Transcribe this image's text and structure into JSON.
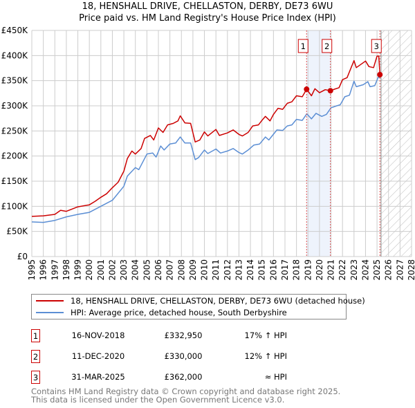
{
  "title_line1": "18, HENSHALL DRIVE, CHELLASTON, DERBY, DE73 6WU",
  "title_line2": "Price paid vs. HM Land Registry's House Price Index (HPI)",
  "legend": [
    {
      "label": "18, HENSHALL DRIVE, CHELLASTON, DERBY, DE73 6WU (detached house)",
      "color": "#cc0000"
    },
    {
      "label": "HPI: Average price, detached house, South Derbyshire",
      "color": "#5b8ed4"
    }
  ],
  "sales": [
    {
      "num": "1",
      "date": "16-NOV-2018",
      "price": "£332,950",
      "hpi": "17% ↑ HPI"
    },
    {
      "num": "2",
      "date": "11-DEC-2020",
      "price": "£330,000",
      "hpi": "12% ↑ HPI"
    },
    {
      "num": "3",
      "date": "31-MAR-2025",
      "price": "£362,000",
      "hpi": "≈ HPI"
    }
  ],
  "footer_line1": "Contains HM Land Registry data © Crown copyright and database right 2025.",
  "footer_line2": "This data is licensed under the Open Government Licence v3.0.",
  "chart_data": {
    "type": "line",
    "xlim": [
      1995,
      2028
    ],
    "ylim": [
      0,
      450000
    ],
    "ytick_values": [
      0,
      50000,
      100000,
      150000,
      200000,
      250000,
      300000,
      350000,
      400000,
      450000
    ],
    "ytick_labels": [
      "£0",
      "£50K",
      "£100K",
      "£150K",
      "£200K",
      "£250K",
      "£300K",
      "£350K",
      "£400K",
      "£450K"
    ],
    "xtick_labels": [
      "1995",
      "1996",
      "1997",
      "1998",
      "1999",
      "2000",
      "2001",
      "2002",
      "2003",
      "2004",
      "2005",
      "2006",
      "2007",
      "2008",
      "2009",
      "2010",
      "2011",
      "2012",
      "2013",
      "2014",
      "2015",
      "2016",
      "2017",
      "2018",
      "2019",
      "2020",
      "2021",
      "2022",
      "2023",
      "2024",
      "2025",
      "2026",
      "2027",
      "2028"
    ],
    "grid": true,
    "shaded_range": [
      2018.88,
      2020.95
    ],
    "forecast_hatch_from": 2025.35,
    "sale_markers": [
      {
        "label": "1",
        "x": 2018.88,
        "y": 332950
      },
      {
        "label": "2",
        "x": 2020.95,
        "y": 330000
      },
      {
        "label": "3",
        "x": 2025.25,
        "y": 362000
      }
    ],
    "series": [
      {
        "name": "18, HENSHALL DRIVE, CHELLASTON, DERBY, DE73 6WU (detached house)",
        "color": "#cc0000",
        "x": [
          1995,
          1996,
          1997,
          1997.5,
          1998,
          1999,
          2000,
          2000.5,
          2001,
          2001.5,
          2002,
          2002.5,
          2003,
          2003.3,
          2003.7,
          2004,
          2004.5,
          2004.8,
          2005.3,
          2005.6,
          2006,
          2006.4,
          2006.8,
          2007.3,
          2007.7,
          2007.9,
          2008.3,
          2008.8,
          2009.2,
          2009.6,
          2010,
          2010.3,
          2011,
          2011.3,
          2012,
          2012.5,
          2013,
          2013.3,
          2013.8,
          2014.2,
          2014.7,
          2015,
          2015.3,
          2015.7,
          2016,
          2016.4,
          2016.8,
          2017.2,
          2017.6,
          2018,
          2018.5,
          2018.88,
          2019.3,
          2019.6,
          2020,
          2020.5,
          2020.95,
          2021.3,
          2021.7,
          2022,
          2022.4,
          2023,
          2023.2,
          2024,
          2024.3,
          2024.7,
          2025.0,
          2025.15,
          2025.25
        ],
        "y": [
          80000,
          81000,
          84000,
          92000,
          90000,
          99000,
          103000,
          110000,
          118000,
          125000,
          137000,
          148000,
          170000,
          195000,
          210000,
          204000,
          215000,
          235000,
          241000,
          232000,
          256000,
          247000,
          262000,
          265000,
          270000,
          280000,
          266000,
          265000,
          228000,
          232000,
          248000,
          240000,
          253000,
          241000,
          246000,
          252000,
          243000,
          240000,
          247000,
          260000,
          262000,
          271000,
          279000,
          270000,
          283000,
          295000,
          293000,
          305000,
          308000,
          320000,
          318000,
          332950,
          320000,
          334000,
          326000,
          332000,
          330000,
          333000,
          336000,
          352000,
          356000,
          390000,
          376000,
          389000,
          378000,
          376000,
          399000,
          399000,
          362000
        ]
      },
      {
        "name": "HPI: Average price, detached house, South Derbyshire",
        "color": "#5b8ed4",
        "x": [
          1995,
          1996,
          1997,
          1998,
          1999,
          2000,
          2001,
          2002,
          2003,
          2003.3,
          2004,
          2004.3,
          2005,
          2005.5,
          2005.8,
          2006.2,
          2006.5,
          2007,
          2007.5,
          2007.9,
          2008.3,
          2008.8,
          2009.2,
          2009.5,
          2010,
          2010.3,
          2011,
          2011.4,
          2012,
          2012.5,
          2013,
          2013.3,
          2013.8,
          2014.3,
          2014.8,
          2015.3,
          2015.6,
          2016.3,
          2016.8,
          2017.2,
          2017.6,
          2018,
          2018.5,
          2018.9,
          2019.3,
          2019.7,
          2020.2,
          2020.6,
          2021,
          2021.5,
          2021.8,
          2022.2,
          2022.6,
          2023,
          2023.2,
          2023.8,
          2024.2,
          2024.4,
          2024.8,
          2025.1,
          2025.3
        ],
        "y": [
          69000,
          68000,
          72000,
          79000,
          84000,
          88000,
          100000,
          112000,
          140000,
          160000,
          177000,
          173000,
          204000,
          206000,
          198000,
          220000,
          212000,
          224000,
          226000,
          238000,
          226000,
          226000,
          193000,
          197000,
          212000,
          205000,
          214000,
          206000,
          210000,
          215000,
          207000,
          204000,
          212000,
          222000,
          224000,
          238000,
          232000,
          252000,
          251000,
          260000,
          262000,
          273000,
          271000,
          284000,
          274000,
          285000,
          279000,
          283000,
          296000,
          300000,
          302000,
          318000,
          321000,
          349000,
          338000,
          342000,
          348000,
          338000,
          340000,
          357000,
          356000
        ]
      }
    ]
  }
}
